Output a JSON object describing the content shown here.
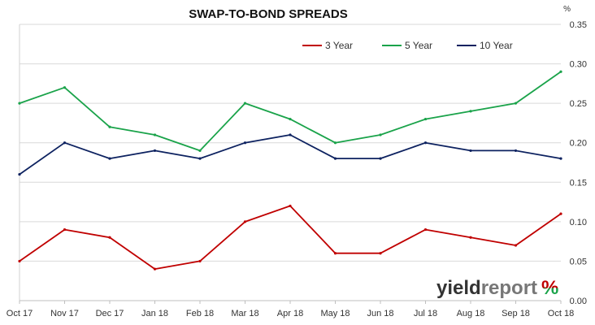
{
  "chart_data": {
    "type": "line",
    "title": "SWAP-TO-BOND SPREADS",
    "yunit": "%",
    "xlabel": "",
    "ylabel": "",
    "ylim": [
      0,
      0.35
    ],
    "yticks": [
      "0.00",
      "0.05",
      "0.10",
      "0.15",
      "0.20",
      "0.25",
      "0.30",
      "0.35"
    ],
    "xticks": [
      "Oct 17",
      "Nov 17",
      "Dec 17",
      "Jan 18",
      "Feb 18",
      "Mar 18",
      "Apr 18",
      "May 18",
      "Jun 18",
      "Jul 18",
      "Aug 18",
      "Sep 18",
      "Oct 18"
    ],
    "grid": "horizontal",
    "legend_position": "top-right",
    "x": [
      "Oct 17",
      "Nov 17",
      "Dec 17",
      "Jan 18",
      "Feb 18",
      "Mar 18",
      "Apr 18",
      "May 18",
      "Jun 18",
      "Jul 18",
      "Aug 18",
      "Sep 18",
      "Oct 18"
    ],
    "series": [
      {
        "name": "3 Year",
        "color": "#c00000",
        "values": [
          0.05,
          0.09,
          0.08,
          0.04,
          0.05,
          0.1,
          0.12,
          0.06,
          0.06,
          0.09,
          0.08,
          0.07,
          0.11
        ]
      },
      {
        "name": "5 Year",
        "color": "#1aa34a",
        "values": [
          0.25,
          0.27,
          0.22,
          0.21,
          0.19,
          0.25,
          0.23,
          0.2,
          0.21,
          0.23,
          0.24,
          0.25,
          0.29
        ]
      },
      {
        "name": "10 Year",
        "color": "#0d2260",
        "values": [
          0.16,
          0.2,
          0.18,
          0.19,
          0.18,
          0.2,
          0.21,
          0.18,
          0.18,
          0.2,
          0.19,
          0.19,
          0.18
        ]
      }
    ]
  },
  "logo": {
    "word1": "yield",
    "word2": "report",
    "percent": "%",
    "colors": {
      "word1": "#333333",
      "word2": "#777777",
      "pct_top": "#c00000",
      "pct_bottom": "#1aa34a"
    }
  }
}
